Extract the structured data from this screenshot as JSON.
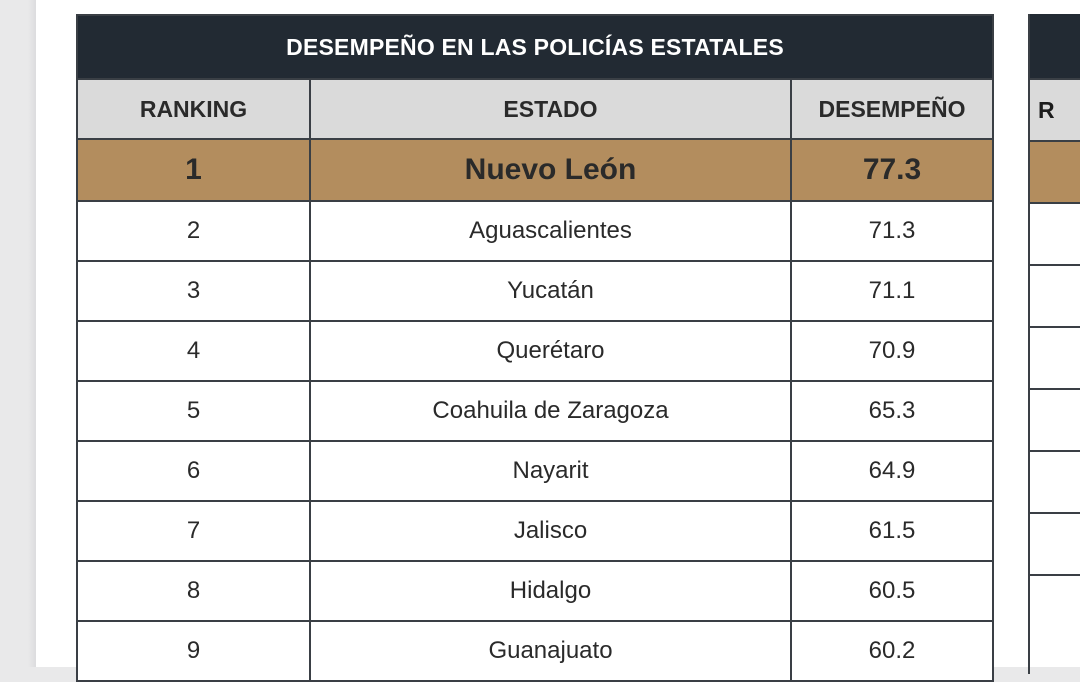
{
  "table": {
    "title": "DESEMPEÑO EN LAS POLICÍAS ESTATALES",
    "columns": [
      "RANKING",
      "ESTADO",
      "DESEMPEÑO"
    ],
    "rows": [
      {
        "rank": "1",
        "state": "Nuevo León",
        "score": "77.3"
      },
      {
        "rank": "2",
        "state": "Aguascalientes",
        "score": "71.3"
      },
      {
        "rank": "3",
        "state": "Yucatán",
        "score": "71.1"
      },
      {
        "rank": "4",
        "state": "Querétaro",
        "score": "70.9"
      },
      {
        "rank": "5",
        "state": "Coahuila de Zaragoza",
        "score": "65.3"
      },
      {
        "rank": "6",
        "state": "Nayarit",
        "score": "64.9"
      },
      {
        "rank": "7",
        "state": "Jalisco",
        "score": "61.5"
      },
      {
        "rank": "8",
        "state": "Hidalgo",
        "score": "60.5"
      },
      {
        "rank": "9",
        "state": "Guanajuato",
        "score": "60.2"
      }
    ],
    "highlight_color": "#b38d5e",
    "title_color": "#222a33"
  },
  "second_table": {
    "header_fragment": "R"
  }
}
